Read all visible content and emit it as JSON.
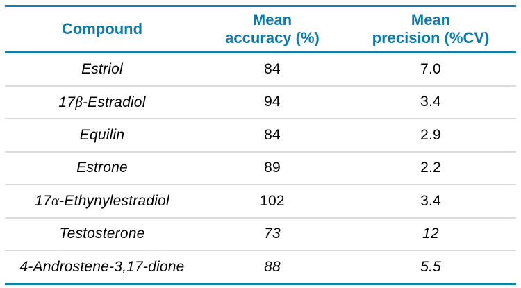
{
  "chart_data": {
    "type": "table",
    "title": "",
    "columns": [
      "Compound",
      "Mean accuracy (%)",
      "Mean precision (%CV)"
    ],
    "rows": [
      [
        "Estriol",
        "84",
        "7.0"
      ],
      [
        "17β-Estradiol",
        "94",
        "3.4"
      ],
      [
        "Equilin",
        "84",
        "2.9"
      ],
      [
        "Estrone",
        "89",
        "2.2"
      ],
      [
        "17α-Ethynylestradiol",
        "102",
        "3.4"
      ],
      [
        "Testosterone",
        "73",
        "12"
      ],
      [
        "4-Androstene-3,17-dione",
        "88",
        "5.5"
      ]
    ],
    "layout": {
      "grid": "horizontal row dividers",
      "accent_rule_positions": [
        "top",
        "below header",
        "bottom"
      ]
    }
  },
  "display": {
    "headers": {
      "compound": "Compound",
      "accuracy": "Mean\naccuracy (%)",
      "precision": "Mean\nprecision (%CV)"
    }
  },
  "colors": {
    "header_text": "#0e7aa6",
    "accent_line": "#1080aa",
    "row_divider": "#dcdcdc",
    "body_text": "#000000",
    "background": "#ffffff"
  }
}
